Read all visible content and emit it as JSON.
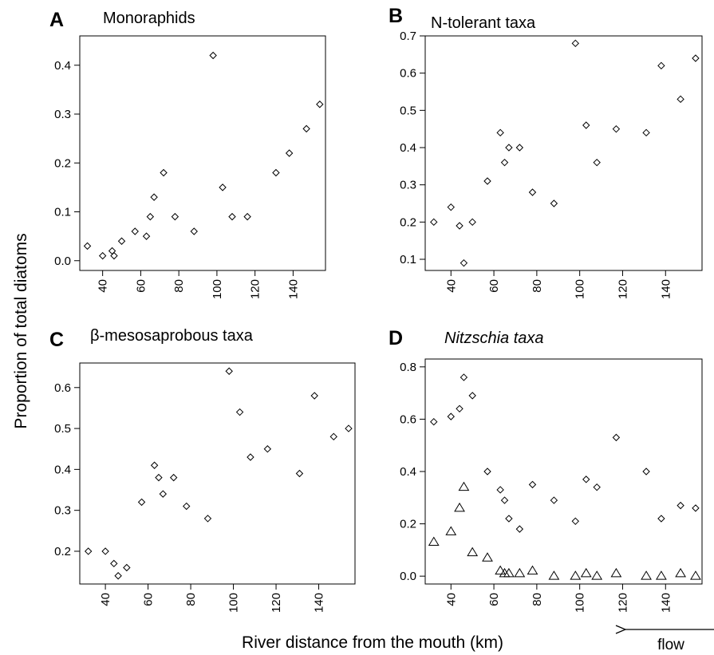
{
  "figure": {
    "ylabel": "Proportion of total diatoms",
    "xlabel": "River distance from the mouth (km)",
    "flow_label": "flow"
  },
  "chart_data": [
    {
      "id": "A",
      "letter": "A",
      "title": "Monoraphids",
      "italic_title": false,
      "type": "scatter",
      "xlim": [
        28,
        157
      ],
      "ylim": [
        -0.02,
        0.46
      ],
      "xticks": [
        40,
        60,
        80,
        100,
        120,
        140
      ],
      "yticks": [
        0.0,
        0.1,
        0.2,
        0.3,
        0.4
      ],
      "ytick_labels": [
        "0.0",
        "0.1",
        "0.2",
        "0.3",
        "0.4"
      ],
      "series": [
        {
          "marker": "diamond",
          "x": [
            32,
            40,
            45,
            46,
            50,
            57,
            63,
            65,
            67,
            72,
            78,
            88,
            98,
            103,
            108,
            116,
            131,
            138,
            147,
            154
          ],
          "y": [
            0.03,
            0.01,
            0.02,
            0.01,
            0.04,
            0.06,
            0.05,
            0.09,
            0.13,
            0.18,
            0.09,
            0.06,
            0.42,
            0.15,
            0.09,
            0.09,
            0.18,
            0.22,
            0.27,
            0.32
          ]
        }
      ]
    },
    {
      "id": "B",
      "letter": "B",
      "title": "N-tolerant taxa",
      "italic_title": false,
      "type": "scatter",
      "xlim": [
        28,
        157
      ],
      "ylim": [
        0.07,
        0.7
      ],
      "xticks": [
        40,
        60,
        80,
        100,
        120,
        140
      ],
      "yticks": [
        0.1,
        0.2,
        0.3,
        0.4,
        0.5,
        0.6,
        0.7
      ],
      "ytick_labels": [
        "0.1",
        "0.2",
        "0.3",
        "0.4",
        "0.5",
        "0.6",
        "0.7"
      ],
      "series": [
        {
          "marker": "diamond",
          "x": [
            32,
            40,
            44,
            46,
            50,
            57,
            63,
            65,
            67,
            72,
            78,
            88,
            98,
            103,
            108,
            117,
            131,
            138,
            147,
            154
          ],
          "y": [
            0.2,
            0.24,
            0.19,
            0.09,
            0.2,
            0.31,
            0.44,
            0.36,
            0.4,
            0.4,
            0.28,
            0.25,
            0.68,
            0.46,
            0.36,
            0.45,
            0.44,
            0.62,
            0.53,
            0.64
          ]
        }
      ]
    },
    {
      "id": "C",
      "letter": "C",
      "title": "β-mesosaprobous taxa",
      "italic_title": false,
      "type": "scatter",
      "xlim": [
        28,
        157
      ],
      "ylim": [
        0.12,
        0.66
      ],
      "xticks": [
        40,
        60,
        80,
        100,
        120,
        140
      ],
      "yticks": [
        0.2,
        0.3,
        0.4,
        0.5,
        0.6
      ],
      "ytick_labels": [
        "0.2",
        "0.3",
        "0.4",
        "0.5",
        "0.6"
      ],
      "series": [
        {
          "marker": "diamond",
          "x": [
            32,
            40,
            44,
            46,
            50,
            57,
            63,
            65,
            67,
            72,
            78,
            88,
            98,
            103,
            108,
            116,
            131,
            138,
            147,
            154
          ],
          "y": [
            0.2,
            0.2,
            0.17,
            0.14,
            0.16,
            0.32,
            0.41,
            0.38,
            0.34,
            0.38,
            0.31,
            0.28,
            0.64,
            0.54,
            0.43,
            0.45,
            0.39,
            0.58,
            0.48,
            0.5
          ]
        }
      ]
    },
    {
      "id": "D",
      "letter": "D",
      "title": "Nitzschia taxa",
      "italic_title": true,
      "type": "scatter",
      "xlim": [
        28,
        157
      ],
      "ylim": [
        -0.03,
        0.83
      ],
      "xticks": [
        40,
        60,
        80,
        100,
        120,
        140
      ],
      "yticks": [
        0.0,
        0.2,
        0.4,
        0.6,
        0.8
      ],
      "ytick_labels": [
        "0.0",
        "0.2",
        "0.4",
        "0.6",
        "0.8"
      ],
      "series": [
        {
          "marker": "diamond",
          "x": [
            32,
            40,
            44,
            46,
            50,
            57,
            63,
            65,
            67,
            72,
            78,
            88,
            98,
            103,
            108,
            117,
            131,
            138,
            147,
            154
          ],
          "y": [
            0.59,
            0.61,
            0.64,
            0.76,
            0.69,
            0.4,
            0.33,
            0.29,
            0.22,
            0.18,
            0.35,
            0.29,
            0.21,
            0.37,
            0.34,
            0.53,
            0.4,
            0.22,
            0.27,
            0.26
          ]
        },
        {
          "marker": "triangle",
          "x": [
            32,
            40,
            44,
            46,
            50,
            57,
            63,
            65,
            67,
            72,
            78,
            88,
            98,
            103,
            108,
            117,
            131,
            138,
            147,
            154
          ],
          "y": [
            0.13,
            0.17,
            0.26,
            0.34,
            0.09,
            0.07,
            0.02,
            0.01,
            0.01,
            0.01,
            0.02,
            0.0,
            0.0,
            0.01,
            0.0,
            0.01,
            0.0,
            0.0,
            0.01,
            0.0
          ]
        }
      ]
    }
  ]
}
